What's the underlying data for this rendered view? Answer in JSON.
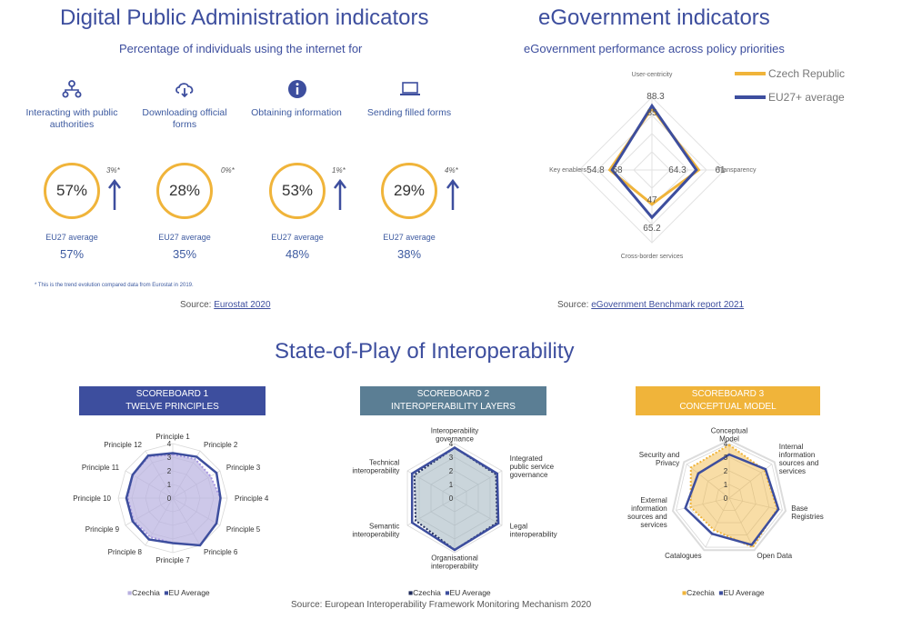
{
  "left": {
    "title": "Digital Public Administration indicators",
    "subtitle": "Percentage of individuals using the internet for",
    "indicators": [
      {
        "icon": "people-network-icon",
        "label": "Interacting with public authorities",
        "value": "57%",
        "trend": "3%*",
        "eu_label": "EU27 average",
        "eu_value": "57%"
      },
      {
        "icon": "cloud-download-icon",
        "label": "Downloading official forms",
        "value": "28%",
        "trend": "0%*",
        "eu_label": "EU27 average",
        "eu_value": "35%"
      },
      {
        "icon": "info-icon",
        "label": "Obtaining information",
        "value": "53%",
        "trend": "1%*",
        "eu_label": "EU27 average",
        "eu_value": "48%"
      },
      {
        "icon": "laptop-icon",
        "label": "Sending filled forms",
        "value": "29%",
        "trend": "4%*",
        "eu_label": "EU27 average",
        "eu_value": "38%"
      }
    ],
    "footnote": "* This is the trend evolution compared data from Eurostat in 2019.",
    "source_prefix": "Source: ",
    "source_link": "Eurostat 2020"
  },
  "right": {
    "title": "eGovernment indicators",
    "subtitle": "eGovernment performance across policy priorities",
    "source_prefix": "Source: ",
    "source_link": "eGovernment Benchmark report 2021"
  },
  "interop": {
    "title": "State-of-Play of Interoperability",
    "source": "Source: European Interoperability Framework Monitoring Mechanism 2020"
  },
  "colors": {
    "accent": "#3d4e9e",
    "orange": "#f0b43a",
    "lavender": "#b8b0e0",
    "scoreboard1": "#3d4e9e",
    "scoreboard2": "#5b7e94",
    "scoreboard3": "#f0b43a"
  },
  "chart_data": [
    {
      "type": "radar",
      "axes": [
        "User-centricity",
        "Transparency",
        "Cross-border services",
        "Key enablers"
      ],
      "series": [
        {
          "name": "Czech Republic",
          "values": [
            85,
            64.3,
            47,
            58
          ],
          "color": "#f0b43a"
        },
        {
          "name": "EU27+ average",
          "values": [
            88.3,
            61,
            65.2,
            54.8
          ],
          "color": "#3d4e9e"
        }
      ],
      "legend": "top-right"
    },
    {
      "type": "radar",
      "title": "SCOREBOARD 1\nTWELVE PRINCIPLES",
      "title_lines": [
        "SCOREBOARD 1",
        "TWELVE PRINCIPLES"
      ],
      "axes": [
        "Principle 1",
        "Principle 2",
        "Principle 3",
        "Principle 4",
        "Principle 5",
        "Principle 6",
        "Principle 7",
        "Principle 8",
        "Principle 9",
        "Principle 10",
        "Principle 11",
        "Principle 12"
      ],
      "ticks": [
        "0",
        "1",
        "2",
        "3",
        "4"
      ],
      "ylim": [
        0,
        4
      ],
      "series": [
        {
          "name": "Czechia",
          "values": [
            3.2,
            3.3,
            3.2,
            3.5,
            3.7,
            4,
            3.3,
            3.3,
            3.3,
            3.3,
            3.4,
            3.5
          ]
        },
        {
          "name": "EU Average",
          "values": [
            3.3,
            3.5,
            3.7,
            3.5,
            3.7,
            4,
            3.3,
            3.5,
            3.4,
            3.4,
            3.4,
            3.6
          ]
        }
      ],
      "legend": "bottom"
    },
    {
      "type": "radar",
      "title": "SCOREBOARD 2\nINTEROPERABILITY LAYERS",
      "title_lines": [
        "SCOREBOARD 2",
        "INTEROPERABILITY LAYERS"
      ],
      "axes": [
        "Interoperability governance",
        "Integrated public service governance",
        "Legal interoperability",
        "Organisational interoperability",
        "Semantic interoperability",
        "Technical interoperability"
      ],
      "ticks": [
        "0",
        "1",
        "2",
        "3",
        "4"
      ],
      "ylim": [
        0,
        4
      ],
      "series": [
        {
          "name": "Czechia",
          "values": [
            3.7,
            3.5,
            3.6,
            3.8,
            3.3,
            3.4
          ]
        },
        {
          "name": "EU Average",
          "values": [
            3.7,
            3.6,
            3.7,
            3.8,
            3.6,
            3.6
          ]
        }
      ],
      "legend": "bottom"
    },
    {
      "type": "radar",
      "title": "SCOREBOARD 3\nCONCEPTUAL MODEL",
      "title_lines": [
        "SCOREBOARD 3",
        "CONCEPTUAL MODEL"
      ],
      "axes": [
        "Conceptual Model",
        "Internal information sources and services",
        "Base Registries",
        "Open Data",
        "Catalogues",
        "External information sources and services",
        "Security and Privacy"
      ],
      "ticks": [
        "0",
        "1",
        "2",
        "3",
        "4"
      ],
      "ylim": [
        0,
        4
      ],
      "series": [
        {
          "name": "Czechia",
          "values": [
            3.9,
            3.3,
            3.6,
            4,
            2.6,
            2.9,
            3.6
          ]
        },
        {
          "name": "EU Average",
          "values": [
            3.2,
            3.4,
            3.7,
            3.8,
            2.9,
            3.3,
            2.9
          ]
        }
      ],
      "legend": "bottom"
    }
  ]
}
